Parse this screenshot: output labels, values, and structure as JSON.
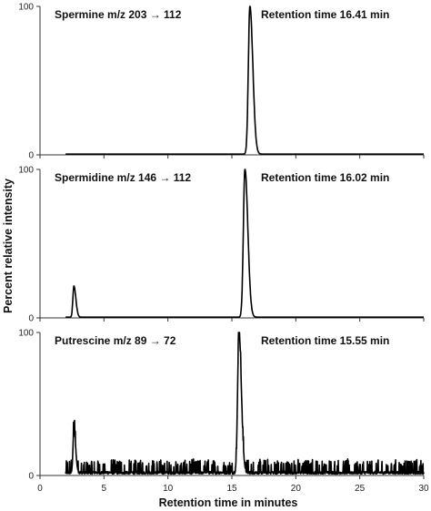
{
  "chart_data": {
    "type": "line",
    "xlabel": "Retention time in minutes",
    "ylabel": "Percent relative intensity",
    "xlim": [
      0,
      30
    ],
    "xticks": [
      "0",
      "5",
      "10",
      "15",
      "20",
      "25",
      "30"
    ],
    "ylim": [
      0,
      100
    ],
    "yticks": [
      "0",
      "100"
    ],
    "grid": false,
    "panels": [
      {
        "compound": "Spermine m/z  203 → 112",
        "retention_label": "Retention time 16.41 min",
        "x_start": 2.0,
        "baseline": 0.5,
        "peaks": [
          {
            "rt": 16.41,
            "height": 100,
            "width": 0.12
          }
        ],
        "noise": 0
      },
      {
        "compound": "Spermidine m/z  146 → 112",
        "retention_label": "Retention time 16.02 min",
        "x_start": 2.0,
        "baseline": 0.5,
        "peaks": [
          {
            "rt": 2.65,
            "height": 21,
            "width": 0.08
          },
          {
            "rt": 16.02,
            "height": 100,
            "width": 0.12
          }
        ],
        "noise": 0
      },
      {
        "compound": "Putrescine m/z  89 → 72",
        "retention_label": "Retention time 15.55 min",
        "x_start": 2.0,
        "baseline": 1,
        "peaks": [
          {
            "rt": 2.65,
            "height": 31,
            "width": 0.07
          },
          {
            "rt": 15.55,
            "height": 100,
            "width": 0.1
          }
        ],
        "noise": 6
      }
    ]
  }
}
